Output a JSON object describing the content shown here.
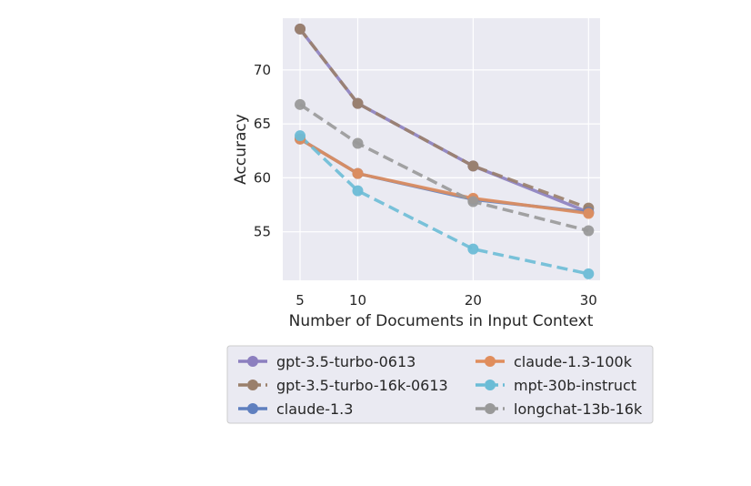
{
  "chart_data": {
    "type": "line",
    "title": "",
    "xlabel": "Number of Documents in Input Context",
    "ylabel": "Accuracy",
    "x": [
      5,
      10,
      20,
      30
    ],
    "xticks": [
      "5",
      "10",
      "20",
      "30"
    ],
    "yticks": [
      "55",
      "60",
      "65",
      "70"
    ],
    "xlim": [
      3.5,
      31
    ],
    "ylim": [
      50.5,
      74.8
    ],
    "grid": true,
    "legend_position": "below",
    "series": [
      {
        "name": "gpt-3.5-turbo-0613",
        "values": [
          73.8,
          66.9,
          61.1,
          56.8
        ],
        "color": "#8c7fbf",
        "dash": "solid"
      },
      {
        "name": "gpt-3.5-turbo-16k-0613",
        "values": [
          73.8,
          66.9,
          61.1,
          57.2
        ],
        "color": "#9a7f6b",
        "dash": "dashed"
      },
      {
        "name": "claude-1.3",
        "values": [
          63.6,
          60.4,
          58.0,
          56.8
        ],
        "color": "#5f7fbf",
        "dash": "solid"
      },
      {
        "name": "claude-1.3-100k",
        "values": [
          63.6,
          60.4,
          58.1,
          56.7
        ],
        "color": "#e08d5c",
        "dash": "solid"
      },
      {
        "name": "mpt-30b-instruct",
        "values": [
          63.9,
          58.8,
          53.4,
          51.1
        ],
        "color": "#6bbcd6",
        "dash": "dashed"
      },
      {
        "name": "longchat-13b-16k",
        "values": [
          66.8,
          63.2,
          57.8,
          55.1
        ],
        "color": "#999999",
        "dash": "dashed"
      }
    ],
    "colors": {
      "plot_background": "#eaeaf2",
      "grid": "#ffffff",
      "text": "#262626"
    }
  }
}
